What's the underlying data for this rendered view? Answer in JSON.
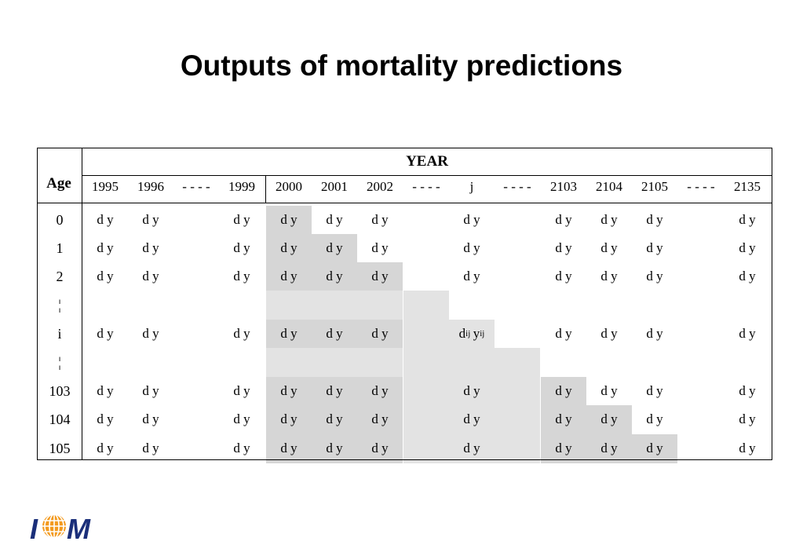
{
  "title": "Outputs of mortality predictions",
  "table": {
    "age_header": "Age",
    "year_header": "YEAR",
    "year_columns": [
      "1995",
      "1996",
      "- - - -",
      "1999",
      "2000",
      "2001",
      "2002",
      "- - - -",
      "j",
      "- - - -",
      "2103",
      "2104",
      "2105",
      "- - - -",
      "2135"
    ],
    "row_labels": [
      "0",
      "1",
      "2",
      "¦",
      "i",
      "¦",
      "103",
      "104",
      "105"
    ],
    "cell_text": "d y",
    "special_cell": {
      "d": "d",
      "y": "y",
      "sub": "ij"
    }
  },
  "logo": {
    "text": "IOM"
  }
}
